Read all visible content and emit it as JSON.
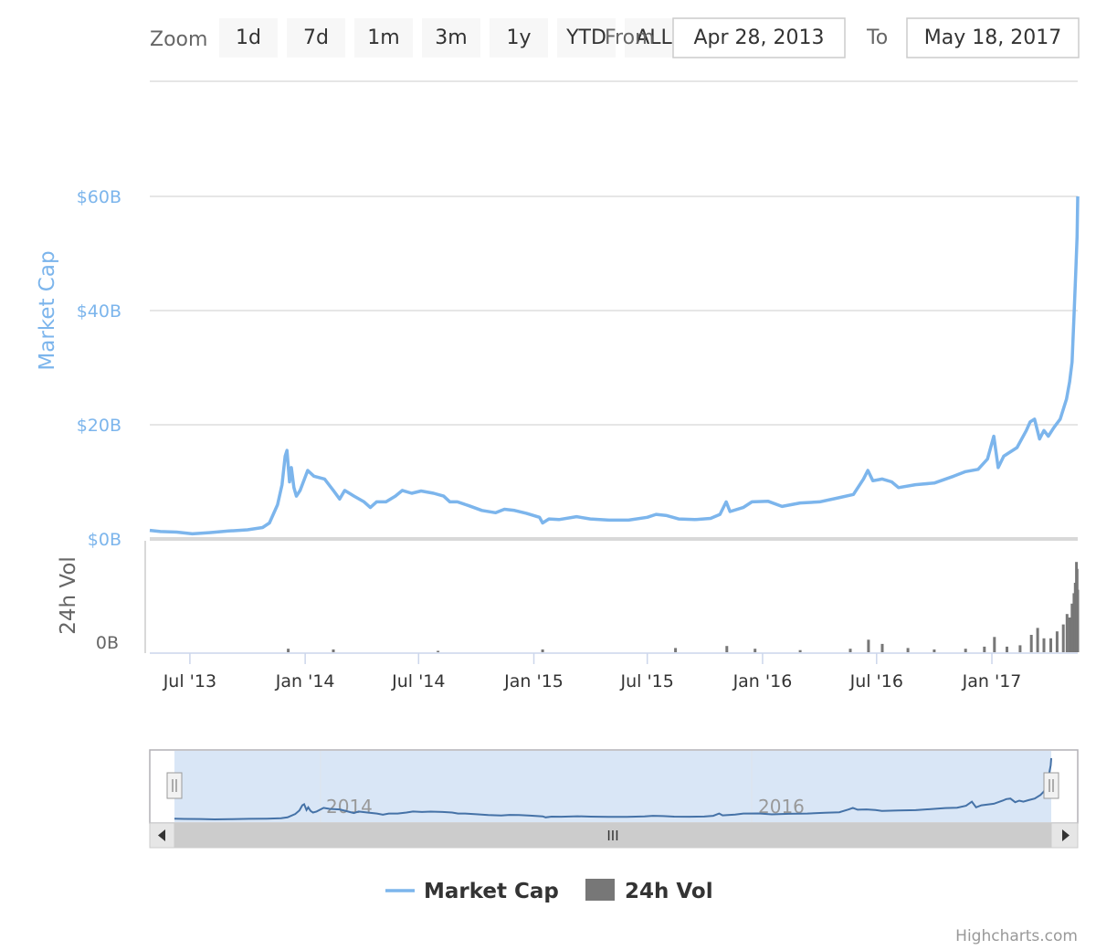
{
  "range_selector": {
    "zoom_label": "Zoom",
    "buttons": [
      "1d",
      "7d",
      "1m",
      "3m",
      "1y",
      "YTD",
      "ALL"
    ],
    "from_label": "From",
    "to_label": "To",
    "from_value": "Apr 28, 2013",
    "to_value": "May 18, 2017"
  },
  "navigator": {
    "labels": [
      "2014",
      "2016"
    ],
    "scrollbar_grip": "III"
  },
  "credits": "Highcharts.com",
  "colors": {
    "market_cap": "#7cb5ec",
    "volume": "#777777",
    "navigator_mask": "#d9e6f6",
    "navigator_line": "#4572a7"
  },
  "chart_data": {
    "type": "line",
    "x_axis": {
      "type": "datetime",
      "range": [
        "2013-04-28",
        "2017-05-18"
      ],
      "tick_labels": [
        "Jul '13",
        "Jan '14",
        "Jul '14",
        "Jan '15",
        "Jul '15",
        "Jan '16",
        "Jul '16",
        "Jan '17"
      ],
      "tick_dates": [
        "2013-07-01",
        "2014-01-01",
        "2014-07-01",
        "2015-01-01",
        "2015-07-01",
        "2016-01-01",
        "2016-07-01",
        "2017-01-01"
      ]
    },
    "y_axes": [
      {
        "title": "Market Cap",
        "tick_labels": [
          "$0B",
          "$20B",
          "$40B",
          "$60B"
        ],
        "ticks": [
          0,
          20,
          40,
          60
        ],
        "unit": "billion USD",
        "range": [
          0,
          60
        ],
        "grid": true
      },
      {
        "title": "24h Vol",
        "tick_labels": [
          "0B"
        ],
        "ticks": [
          0
        ],
        "unit": "billion USD",
        "range": [
          0,
          1.5
        ]
      }
    ],
    "legend": {
      "placement": "bottom-center",
      "items": [
        "Market Cap",
        "24h Vol"
      ]
    },
    "series": [
      {
        "name": "Market Cap",
        "type": "line",
        "unit": "billion USD",
        "points": [
          [
            "2013-04-28",
            1.5
          ],
          [
            "2013-05-15",
            1.3
          ],
          [
            "2013-06-10",
            1.2
          ],
          [
            "2013-07-05",
            0.9
          ],
          [
            "2013-08-01",
            1.1
          ],
          [
            "2013-09-01",
            1.4
          ],
          [
            "2013-10-01",
            1.6
          ],
          [
            "2013-10-25",
            2.0
          ],
          [
            "2013-11-05",
            2.8
          ],
          [
            "2013-11-18",
            6.0
          ],
          [
            "2013-11-25",
            9.5
          ],
          [
            "2013-11-30",
            14.5
          ],
          [
            "2013-12-03",
            15.5
          ],
          [
            "2013-12-07",
            10.0
          ],
          [
            "2013-12-10",
            12.5
          ],
          [
            "2013-12-14",
            9.0
          ],
          [
            "2013-12-18",
            7.5
          ],
          [
            "2013-12-24",
            8.5
          ],
          [
            "2014-01-05",
            12.0
          ],
          [
            "2014-01-15",
            11.0
          ],
          [
            "2014-02-01",
            10.5
          ],
          [
            "2014-02-15",
            8.5
          ],
          [
            "2014-02-25",
            7.0
          ],
          [
            "2014-03-05",
            8.5
          ],
          [
            "2014-03-20",
            7.5
          ],
          [
            "2014-04-05",
            6.5
          ],
          [
            "2014-04-15",
            5.5
          ],
          [
            "2014-04-25",
            6.5
          ],
          [
            "2014-05-10",
            6.5
          ],
          [
            "2014-05-25",
            7.5
          ],
          [
            "2014-06-05",
            8.5
          ],
          [
            "2014-06-20",
            8.0
          ],
          [
            "2014-07-05",
            8.4
          ],
          [
            "2014-07-25",
            8.0
          ],
          [
            "2014-08-10",
            7.5
          ],
          [
            "2014-08-20",
            6.5
          ],
          [
            "2014-09-01",
            6.5
          ],
          [
            "2014-09-20",
            5.8
          ],
          [
            "2014-10-10",
            5.0
          ],
          [
            "2014-11-01",
            4.6
          ],
          [
            "2014-11-15",
            5.2
          ],
          [
            "2014-12-01",
            5.0
          ],
          [
            "2014-12-20",
            4.5
          ],
          [
            "2015-01-10",
            3.8
          ],
          [
            "2015-01-15",
            2.8
          ],
          [
            "2015-01-25",
            3.5
          ],
          [
            "2015-02-10",
            3.4
          ],
          [
            "2015-03-10",
            3.9
          ],
          [
            "2015-04-01",
            3.5
          ],
          [
            "2015-05-01",
            3.3
          ],
          [
            "2015-06-01",
            3.3
          ],
          [
            "2015-07-01",
            3.8
          ],
          [
            "2015-07-15",
            4.3
          ],
          [
            "2015-08-01",
            4.1
          ],
          [
            "2015-08-20",
            3.5
          ],
          [
            "2015-09-15",
            3.4
          ],
          [
            "2015-10-10",
            3.6
          ],
          [
            "2015-10-25",
            4.3
          ],
          [
            "2015-11-04",
            6.5
          ],
          [
            "2015-11-10",
            4.8
          ],
          [
            "2015-12-01",
            5.5
          ],
          [
            "2015-12-15",
            6.5
          ],
          [
            "2016-01-10",
            6.6
          ],
          [
            "2016-02-01",
            5.7
          ],
          [
            "2016-03-01",
            6.3
          ],
          [
            "2016-04-01",
            6.5
          ],
          [
            "2016-05-01",
            7.2
          ],
          [
            "2016-05-25",
            7.8
          ],
          [
            "2016-06-10",
            10.5
          ],
          [
            "2016-06-17",
            12.0
          ],
          [
            "2016-06-25",
            10.2
          ],
          [
            "2016-07-10",
            10.5
          ],
          [
            "2016-07-25",
            10.0
          ],
          [
            "2016-08-05",
            9.0
          ],
          [
            "2016-09-01",
            9.5
          ],
          [
            "2016-10-01",
            9.8
          ],
          [
            "2016-11-01",
            11.0
          ],
          [
            "2016-11-20",
            11.8
          ],
          [
            "2016-12-10",
            12.2
          ],
          [
            "2016-12-25",
            14.0
          ],
          [
            "2017-01-04",
            18.0
          ],
          [
            "2017-01-11",
            12.5
          ],
          [
            "2017-01-20",
            14.5
          ],
          [
            "2017-02-10",
            16.0
          ],
          [
            "2017-02-25",
            19.0
          ],
          [
            "2017-03-03",
            20.5
          ],
          [
            "2017-03-10",
            21.0
          ],
          [
            "2017-03-18",
            17.5
          ],
          [
            "2017-03-25",
            19.0
          ],
          [
            "2017-04-01",
            18.0
          ],
          [
            "2017-04-10",
            19.5
          ],
          [
            "2017-04-20",
            21.0
          ],
          [
            "2017-04-30",
            24.5
          ],
          [
            "2017-05-05",
            27.5
          ],
          [
            "2017-05-09",
            31.0
          ],
          [
            "2017-05-12",
            39.0
          ],
          [
            "2017-05-15",
            47.0
          ],
          [
            "2017-05-17",
            53.0
          ],
          [
            "2017-05-18",
            60.0
          ]
        ]
      },
      {
        "name": "24h Vol",
        "type": "column",
        "unit": "billion USD",
        "points": [
          [
            "2013-12-05",
            0.05
          ],
          [
            "2014-02-15",
            0.04
          ],
          [
            "2014-08-01",
            0.02
          ],
          [
            "2015-01-15",
            0.04
          ],
          [
            "2015-08-15",
            0.06
          ],
          [
            "2015-11-05",
            0.09
          ],
          [
            "2015-12-20",
            0.05
          ],
          [
            "2016-03-01",
            0.03
          ],
          [
            "2016-05-20",
            0.05
          ],
          [
            "2016-06-18",
            0.18
          ],
          [
            "2016-07-10",
            0.12
          ],
          [
            "2016-08-20",
            0.06
          ],
          [
            "2016-10-01",
            0.04
          ],
          [
            "2016-11-20",
            0.05
          ],
          [
            "2016-12-20",
            0.08
          ],
          [
            "2017-01-05",
            0.22
          ],
          [
            "2017-01-25",
            0.08
          ],
          [
            "2017-02-15",
            0.1
          ],
          [
            "2017-03-05",
            0.25
          ],
          [
            "2017-03-15",
            0.35
          ],
          [
            "2017-03-25",
            0.2
          ],
          [
            "2017-04-05",
            0.2
          ],
          [
            "2017-04-15",
            0.3
          ],
          [
            "2017-04-25",
            0.4
          ],
          [
            "2017-05-01",
            0.55
          ],
          [
            "2017-05-05",
            0.5
          ],
          [
            "2017-05-09",
            0.7
          ],
          [
            "2017-05-12",
            0.85
          ],
          [
            "2017-05-14",
            1.0
          ],
          [
            "2017-05-16",
            1.3
          ],
          [
            "2017-05-17",
            1.2
          ],
          [
            "2017-05-18",
            0.9
          ]
        ]
      }
    ]
  }
}
